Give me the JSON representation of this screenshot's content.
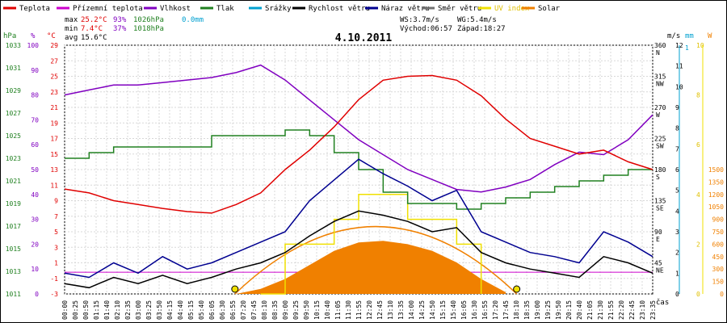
{
  "chart_data": {
    "type": "line",
    "title": "4.10.2011",
    "xlabel": "čas",
    "legend": [
      {
        "name": "Teplota",
        "color": "#e00000"
      },
      {
        "name": "Přízemní teplota",
        "color": "#cc00cc"
      },
      {
        "name": "Vlhkost",
        "color": "#8000c0"
      },
      {
        "name": "Tlak",
        "color": "#208020"
      },
      {
        "name": "Srážky",
        "color": "#00a0d0"
      },
      {
        "name": "Rychlost větru",
        "color": "#000000"
      },
      {
        "name": "Náraz větru",
        "color": "#000090"
      },
      {
        "name": "Směr větru",
        "color": "#707070"
      },
      {
        "name": "UV index",
        "color": "#f0e000"
      },
      {
        "name": "Solar",
        "color": "#f08000"
      }
    ],
    "stats": {
      "max": {
        "label": "max",
        "temp": "25.2°C",
        "hum": "93%",
        "press": "1026hPa"
      },
      "min": {
        "label": "min",
        "temp": "7.4°C",
        "hum": "37%",
        "press": "1018hPa"
      },
      "avg": {
        "label": "avg",
        "temp": "15.6°C"
      },
      "rain": "0.0mm",
      "ws": "WS:3.7m/s",
      "wg": "WG:5.4m/s",
      "sunrise": "Východ:06:57",
      "sunset": "Západ:18:27"
    },
    "axes": {
      "hpa": {
        "unit": "hPa",
        "ticks": [
          "1033",
          "1031",
          "1029",
          "1027",
          "1025",
          "1023",
          "1021",
          "1019",
          "1017",
          "1015",
          "1013",
          "1011"
        ]
      },
      "pct": {
        "unit": "%",
        "ticks": [
          "100",
          "90",
          "80",
          "70",
          "60",
          "50",
          "40",
          "30",
          "20",
          "10",
          "0"
        ]
      },
      "temp": {
        "unit": "°C",
        "ticks": [
          "29",
          "27",
          "25",
          "23",
          "21",
          "19",
          "17",
          "15",
          "13",
          "11",
          "9",
          "7",
          "5",
          "3",
          "1",
          "-1",
          "-3"
        ]
      },
      "dir": {
        "ticks": [
          {
            "deg": "360",
            "card": "N"
          },
          {
            "deg": "315",
            "card": "NW"
          },
          {
            "deg": "270",
            "card": "W"
          },
          {
            "deg": "225",
            "card": "SW"
          },
          {
            "deg": "180",
            "card": "S"
          },
          {
            "deg": "135",
            "card": "SE"
          },
          {
            "deg": "90",
            "card": "E"
          },
          {
            "deg": "45",
            "card": "NE"
          }
        ]
      },
      "ms": {
        "unit": "m/s",
        "ticks": [
          "12",
          "11",
          "10",
          "9",
          "8",
          "7",
          "6",
          "5",
          "4",
          "3",
          "2",
          "1",
          "0"
        ]
      },
      "mm": {
        "unit": "mm",
        "ticks": [
          "1"
        ]
      },
      "uv": {
        "ticks": [
          "10",
          "8",
          "6",
          "4",
          "2",
          "0"
        ]
      },
      "watt": {
        "unit": "W",
        "ticks": [
          "1500",
          "1350",
          "1200",
          "1050",
          "900",
          "750",
          "600",
          "450",
          "300",
          "150",
          "0"
        ]
      }
    },
    "x_ticks": [
      "00:00",
      "00:25",
      "00:50",
      "01:15",
      "01:40",
      "02:10",
      "02:35",
      "03:00",
      "03:25",
      "03:50",
      "04:15",
      "04:40",
      "05:15",
      "05:40",
      "06:05",
      "06:30",
      "06:55",
      "07:20",
      "07:45",
      "08:10",
      "08:35",
      "09:00",
      "09:25",
      "09:50",
      "10:15",
      "10:40",
      "11:05",
      "11:30",
      "11:55",
      "12:20",
      "12:45",
      "13:10",
      "13:35",
      "14:00",
      "14:25",
      "14:50",
      "15:15",
      "15:40",
      "16:05",
      "16:30",
      "16:55",
      "17:20",
      "17:45",
      "18:10",
      "18:35",
      "19:00",
      "19:25",
      "19:50",
      "20:15",
      "20:40",
      "21:05",
      "21:30",
      "21:55",
      "22:20",
      "22:45",
      "23:10",
      "23:35"
    ],
    "x_range_hours": [
      0,
      24
    ],
    "series": [
      {
        "name": "Teplota",
        "unit": "°C",
        "x": [
          0,
          1,
          2,
          3,
          4,
          5,
          6,
          7,
          8,
          9,
          10,
          11,
          12,
          13,
          14,
          15,
          16,
          17,
          18,
          19,
          20,
          21,
          22,
          23,
          24
        ],
        "values": [
          10.5,
          10.0,
          9.0,
          8.5,
          8.0,
          7.6,
          7.4,
          8.5,
          10.0,
          13.0,
          15.5,
          18.5,
          22.0,
          24.5,
          25.0,
          25.1,
          24.5,
          22.5,
          19.5,
          17.0,
          16.0,
          15.0,
          15.5,
          14.0,
          13.0
        ]
      },
      {
        "name": "Vlhkost",
        "unit": "%",
        "x": [
          0,
          1,
          2,
          3,
          4,
          5,
          6,
          7,
          8,
          9,
          10,
          11,
          12,
          13,
          14,
          15,
          16,
          17,
          18,
          19,
          20,
          21,
          22,
          23,
          24
        ],
        "values": [
          80,
          82,
          84,
          84,
          85,
          86,
          87,
          89,
          92,
          86,
          78,
          70,
          62,
          56,
          50,
          46,
          42,
          41,
          43,
          46,
          52,
          57,
          56,
          62,
          72
        ]
      },
      {
        "name": "Tlak",
        "unit": "hPa",
        "x": [
          0,
          1,
          2,
          3,
          4,
          5,
          6,
          7,
          8,
          9,
          10,
          11,
          12,
          13,
          14,
          15,
          16,
          17,
          18,
          19,
          20,
          21,
          22,
          23,
          24
        ],
        "values": [
          1023,
          1023.5,
          1024,
          1024,
          1024,
          1024,
          1025,
          1025,
          1025,
          1025.5,
          1025,
          1023.5,
          1022,
          1020,
          1019,
          1019,
          1018.5,
          1019,
          1019.5,
          1020,
          1020.5,
          1021,
          1021.5,
          1022,
          1022
        ]
      },
      {
        "name": "Rychlost větru",
        "unit": "m/s",
        "x": [
          0,
          1,
          2,
          3,
          4,
          5,
          6,
          7,
          8,
          9,
          10,
          11,
          12,
          13,
          14,
          15,
          16,
          17,
          18,
          19,
          20,
          21,
          22,
          23,
          24
        ],
        "values": [
          0.5,
          0.3,
          0.8,
          0.5,
          0.9,
          0.5,
          0.8,
          1.2,
          1.5,
          2.0,
          2.8,
          3.5,
          4.0,
          3.8,
          3.5,
          3.0,
          3.2,
          2.0,
          1.5,
          1.2,
          1.0,
          0.8,
          1.8,
          1.5,
          1.0
        ]
      },
      {
        "name": "Náraz větru",
        "unit": "m/s",
        "x": [
          0,
          1,
          2,
          3,
          4,
          5,
          6,
          7,
          8,
          9,
          10,
          11,
          12,
          13,
          14,
          15,
          16,
          17,
          18,
          19,
          20,
          21,
          22,
          23,
          24
        ],
        "values": [
          1.0,
          0.8,
          1.5,
          1.0,
          1.8,
          1.2,
          1.5,
          2.0,
          2.5,
          3.0,
          4.5,
          5.5,
          6.5,
          5.8,
          5.2,
          4.5,
          5.0,
          3.0,
          2.5,
          2.0,
          1.8,
          1.5,
          3.0,
          2.5,
          1.8
        ]
      },
      {
        "name": "Solar",
        "unit": "W",
        "x": [
          7,
          8,
          9,
          10,
          11,
          12,
          13,
          14,
          15,
          16,
          17,
          18
        ],
        "values": [
          0,
          60,
          180,
          350,
          520,
          620,
          640,
          600,
          520,
          380,
          180,
          20
        ]
      },
      {
        "name": "UV index",
        "unit": "",
        "x": [
          8,
          9,
          10,
          11,
          12,
          13,
          14,
          15,
          16,
          17
        ],
        "values": [
          0,
          2,
          2,
          3,
          4,
          4,
          3,
          3,
          2,
          0
        ]
      }
    ]
  }
}
